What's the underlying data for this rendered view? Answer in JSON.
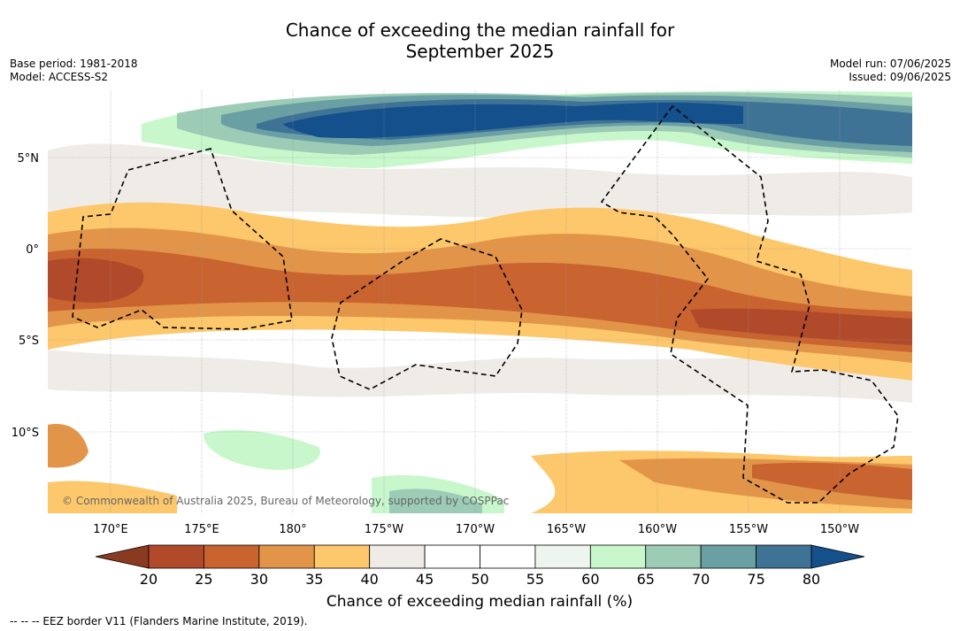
{
  "title_line1": "Chance of exceeding the median rainfall for",
  "title_line2": "September 2025",
  "base_period": "Base period: 1981-2018",
  "model": "Model: ACCESS-S2",
  "model_run": "Model run: 07/06/2025",
  "issued": "Issued: 09/06/2025",
  "copyright": "© Commonwealth of Australia 2025, Bureau of Meteorology, supported by COSPPac",
  "lon_labels": [
    "170°E",
    "175°E",
    "180°",
    "175°W",
    "170°W",
    "165°W",
    "160°W",
    "155°W",
    "150°W"
  ],
  "lat_labels": [
    "5°N",
    "0°",
    "5°S",
    "10°S"
  ],
  "colorbar": {
    "title": "Chance of exceeding median rainfall (%)",
    "ticks": [
      "20",
      "25",
      "30",
      "35",
      "40",
      "45",
      "50",
      "55",
      "60",
      "65",
      "70",
      "75",
      "80"
    ],
    "colors": [
      "#8b3a22",
      "#b04a2b",
      "#c9632f",
      "#e29549",
      "#fdc76b",
      "#efebe7",
      "#ffffff",
      "#ffffff",
      "#eef5ee",
      "#c7f7cb",
      "#9ccbb6",
      "#6a9fa3",
      "#3f7396",
      "#13508c"
    ]
  },
  "footer": "--  --  -- EEZ border V11 (Flanders Marine Institute, 2019)."
}
